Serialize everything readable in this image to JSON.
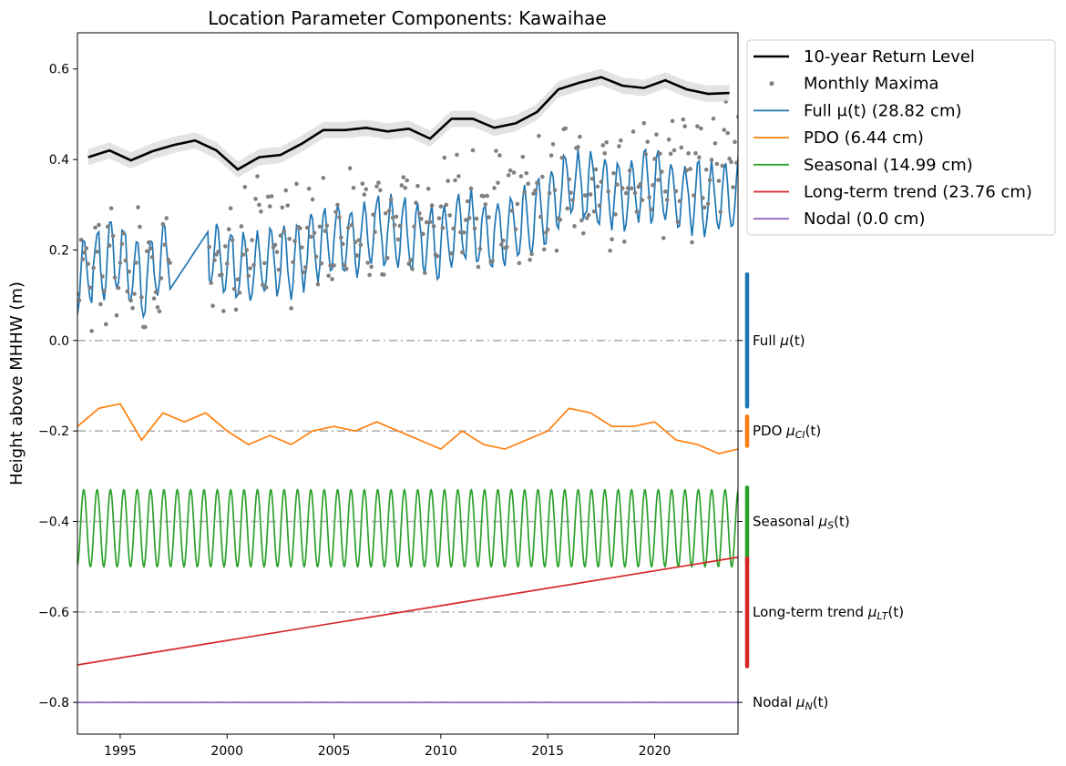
{
  "chart_data": {
    "type": "line",
    "title": "Location Parameter Components: Kawaihae",
    "xlabel": "",
    "ylabel": "Height above MHHW (m)",
    "xlim": [
      1993.0,
      2023.9
    ],
    "ylim": [
      -0.87,
      0.68
    ],
    "x_ticks": [
      1995,
      2000,
      2005,
      2010,
      2015,
      2020
    ],
    "y_ticks": [
      -0.8,
      -0.6,
      -0.4,
      -0.2,
      0.0,
      0.2,
      0.4,
      0.6
    ],
    "y_tick_labels": [
      "−0.8",
      "−0.6",
      "−0.4",
      "−0.2",
      "0.0",
      "0.2",
      "0.4",
      "0.6"
    ],
    "grid": false,
    "legend_placement": "outside upper right",
    "reference_lines": [
      0.0,
      -0.2,
      -0.4,
      -0.6,
      -0.8
    ],
    "series": [
      {
        "name": "10-year Return Level",
        "kind": "line",
        "color": "#000000",
        "band_color": "#d9d9d9",
        "x": [
          1993.5,
          1994.5,
          1995.5,
          1996.5,
          1997.5,
          1998.5,
          1999.5,
          2000.5,
          2001.5,
          2002.5,
          2003.5,
          2004.5,
          2005.5,
          2006.5,
          2007.5,
          2008.5,
          2009.5,
          2010.5,
          2011.5,
          2012.5,
          2013.5,
          2014.5,
          2015.5,
          2016.5,
          2017.5,
          2018.5,
          2019.5,
          2020.5,
          2021.5,
          2022.5,
          2023.5
        ],
        "y": [
          0.405,
          0.42,
          0.398,
          0.418,
          0.432,
          0.442,
          0.42,
          0.378,
          0.405,
          0.41,
          0.435,
          0.465,
          0.465,
          0.47,
          0.462,
          0.468,
          0.446,
          0.49,
          0.49,
          0.47,
          0.48,
          0.505,
          0.555,
          0.57,
          0.582,
          0.563,
          0.558,
          0.575,
          0.555,
          0.545,
          0.547
        ],
        "band_halfwidth": 0.018
      },
      {
        "name": "Monthly Maxima",
        "kind": "scatter",
        "color": "#808080"
      },
      {
        "name": "Full μ(t) (28.82 cm)",
        "kind": "line",
        "color": "#1f77b4",
        "component_label": "Full μ(t)",
        "offset": 0.0
      },
      {
        "name": "PDO (6.44 cm)",
        "kind": "line",
        "color": "#ff7f0e",
        "component_label": "PDO μCI(t)",
        "offset": -0.2,
        "x": [
          1993.0,
          1994.0,
          1995.0,
          1996.0,
          1997.0,
          1998.0,
          1999.0,
          2000.0,
          2001.0,
          2002.0,
          2003.0,
          2004.0,
          2005.0,
          2006.0,
          2007.0,
          2008.0,
          2009.0,
          2010.0,
          2011.0,
          2012.0,
          2013.0,
          2014.0,
          2015.0,
          2016.0,
          2017.0,
          2018.0,
          2019.0,
          2020.0,
          2021.0,
          2022.0,
          2023.0,
          2023.9
        ],
        "y": [
          -0.19,
          -0.15,
          -0.14,
          -0.22,
          -0.16,
          -0.18,
          -0.16,
          -0.2,
          -0.23,
          -0.21,
          -0.23,
          -0.2,
          -0.19,
          -0.2,
          -0.18,
          -0.2,
          -0.22,
          -0.24,
          -0.2,
          -0.23,
          -0.24,
          -0.22,
          -0.2,
          -0.15,
          -0.16,
          -0.19,
          -0.19,
          -0.18,
          -0.22,
          -0.23,
          -0.25,
          -0.24
        ]
      },
      {
        "name": "Seasonal (14.99 cm)",
        "kind": "line",
        "color": "#2ca02c",
        "component_label": "Seasonal μS(t)",
        "offset": -0.4,
        "amplitude": 0.085,
        "cycles_per_year": 1.6,
        "center": -0.415
      },
      {
        "name": "Long-term trend (23.76 cm)",
        "kind": "line",
        "color": "#d62728",
        "component_label": "Long-term trend μLT(t)",
        "offset": -0.6,
        "x": [
          1993.0,
          2023.9
        ],
        "y": [
          -0.717,
          -0.479
        ]
      },
      {
        "name": "Nodal (0.0 cm)",
        "kind": "line",
        "color": "#9467bd",
        "component_label": "Nodal μN(t)",
        "offset": -0.8,
        "x": [
          1993.0,
          2023.9
        ],
        "y": [
          -0.8,
          -0.8
        ]
      }
    ],
    "component_bars": [
      {
        "name": "Full μ(t)",
        "color": "#1f77b4",
        "range": [
          -0.146,
          0.146
        ]
      },
      {
        "name": "PDO μCI(t)",
        "color": "#ff7f0e",
        "range": [
          -0.233,
          -0.168
        ]
      },
      {
        "name": "Seasonal μS(t)",
        "color": "#2ca02c",
        "range": [
          -0.49,
          -0.325
        ]
      },
      {
        "name": "Long-term trend μLT(t)",
        "color": "#d62728",
        "range": [
          -0.72,
          -0.482
        ]
      },
      {
        "name": "Nodal μN(t)",
        "color": "#9467bd",
        "range": [
          -0.8,
          -0.8
        ]
      }
    ]
  },
  "legend": {
    "items": [
      {
        "label": "10-year Return Level",
        "color": "#000000",
        "style": "thick-line"
      },
      {
        "label": "Monthly Maxima",
        "color": "#808080",
        "style": "dot"
      },
      {
        "label": "Full μ(t) (28.82 cm)",
        "color": "#1f77b4",
        "style": "line"
      },
      {
        "label": "PDO (6.44 cm)",
        "color": "#ff7f0e",
        "style": "line"
      },
      {
        "label": "Seasonal (14.99 cm)",
        "color": "#2ca02c",
        "style": "line"
      },
      {
        "label": "Long-term trend (23.76 cm)",
        "color": "#d62728",
        "style": "line"
      },
      {
        "label": "Nodal (0.0 cm)",
        "color": "#9467bd",
        "style": "line"
      }
    ]
  },
  "right_labels": [
    {
      "prefix": "Full ",
      "sym": "μ",
      "sub": "",
      "suffix": "(t)",
      "y": 0.0
    },
    {
      "prefix": "PDO ",
      "sym": "μ",
      "sub": "CI",
      "suffix": "(t)",
      "y": -0.2
    },
    {
      "prefix": "Seasonal ",
      "sym": "μ",
      "sub": "S",
      "suffix": "(t)",
      "y": -0.4
    },
    {
      "prefix": "Long-term trend ",
      "sym": "μ",
      "sub": "LT",
      "suffix": "(t)",
      "y": -0.6
    },
    {
      "prefix": "Nodal ",
      "sym": "μ",
      "sub": "N",
      "suffix": "(t)",
      "y": -0.8
    }
  ]
}
